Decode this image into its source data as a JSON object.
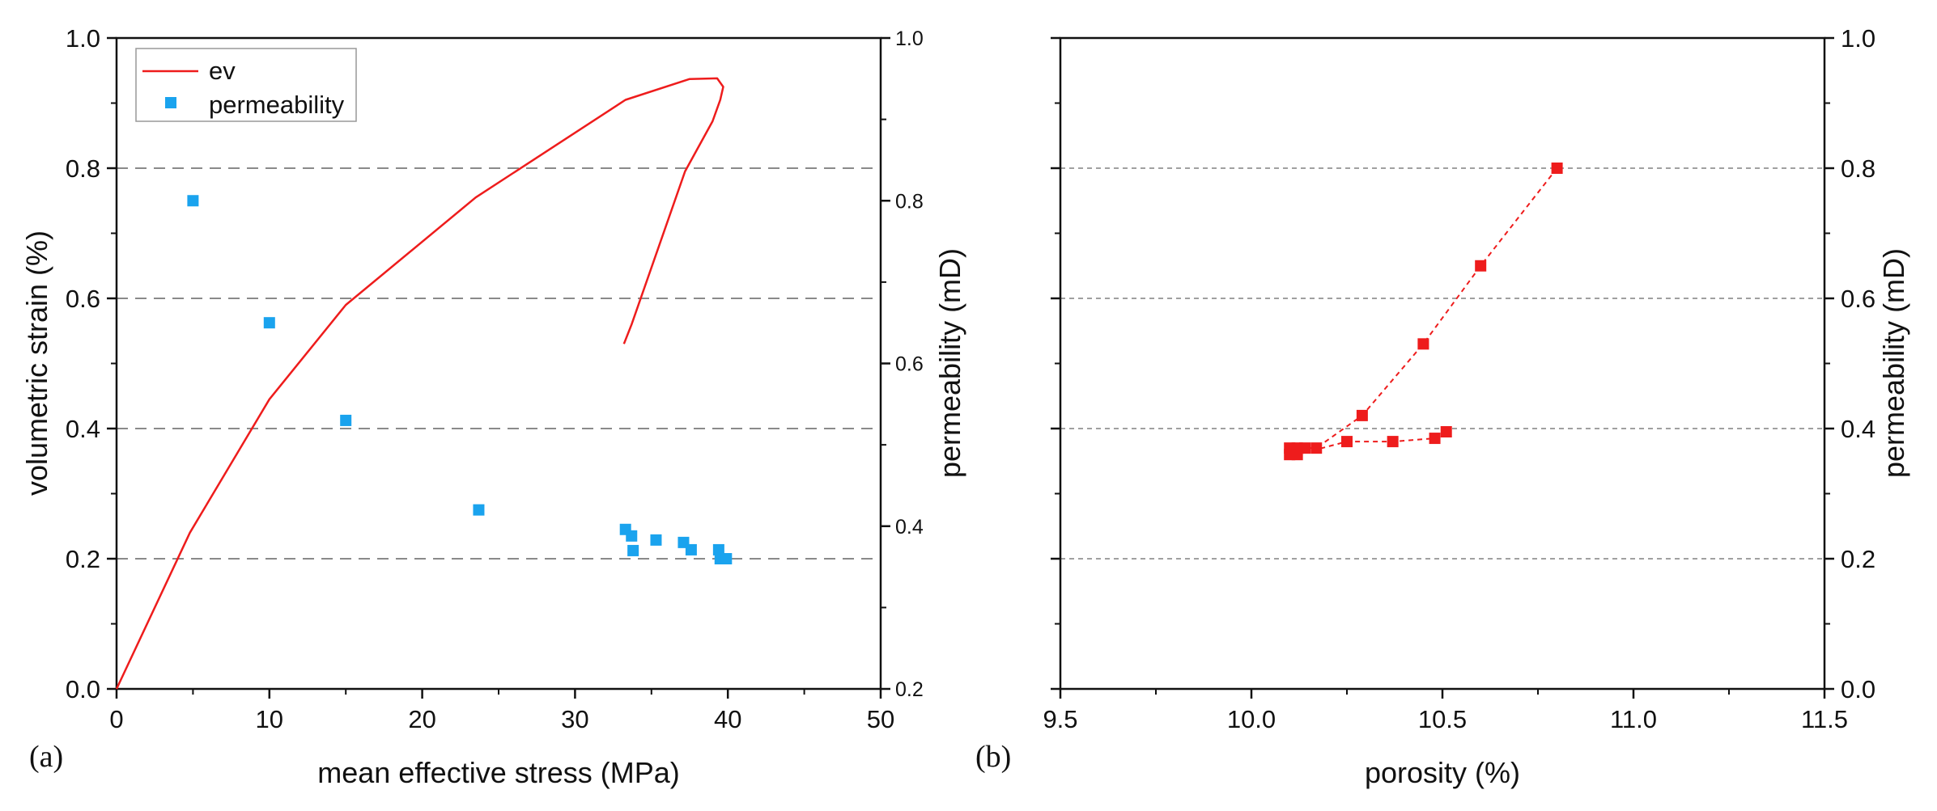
{
  "chart_data": [
    {
      "panel": "(a)",
      "type": "line+scatter",
      "xlabel": "mean effective stress (MPa)",
      "ylabel_left": "volumetric strain (%)",
      "ylabel_right": "permeability (mD)",
      "xlim": [
        0,
        50
      ],
      "ylim_left": [
        0.0,
        1.0
      ],
      "ylim_right": [
        0.2,
        1.0
      ],
      "xticks": [
        "0",
        "10",
        "20",
        "30",
        "40",
        "50"
      ],
      "yticks_left": [
        "0.0",
        "0.2",
        "0.4",
        "0.6",
        "0.8",
        "1.0"
      ],
      "yticks_right": [
        "0.2",
        "0.4",
        "0.6",
        "0.8",
        "1.0"
      ],
      "grid": "horizontal dashed at left-axis ticks 0.2, 0.4, 0.6, 0.8",
      "legend": {
        "position": "top-left",
        "entries": [
          "ev",
          "permeability"
        ]
      },
      "series": [
        {
          "name": "ev",
          "kind": "line",
          "axis": "left",
          "color": "#ee1c1c",
          "x": [
            0,
            4.8,
            10,
            15,
            23.5,
            33.3,
            37.5,
            39.3,
            39.7,
            39.5,
            39.0,
            37.2,
            33.7,
            33.2
          ],
          "y": [
            0.0,
            0.24,
            0.445,
            0.59,
            0.755,
            0.905,
            0.937,
            0.938,
            0.925,
            0.905,
            0.872,
            0.795,
            0.56,
            0.53
          ]
        },
        {
          "name": "permeability",
          "kind": "scatter",
          "axis": "right",
          "color": "#1aa3ee",
          "x": [
            5,
            10,
            15,
            23.7,
            33.3,
            33.7,
            33.8,
            35.3,
            37.1,
            37.6,
            39.4,
            39.5,
            39.9
          ],
          "y": [
            0.8,
            0.65,
            0.53,
            0.42,
            0.396,
            0.388,
            0.37,
            0.383,
            0.38,
            0.371,
            0.371,
            0.36,
            0.36
          ]
        }
      ]
    },
    {
      "panel": "(b)",
      "type": "scatter+dashed-line",
      "xlabel": "porosity (%)",
      "ylabel_right": "permeability (mD)",
      "xlim": [
        9.5,
        11.5
      ],
      "ylim_right": [
        0.0,
        1.0
      ],
      "xticks": [
        "9.5",
        "10.0",
        "10.5",
        "11.0",
        "11.5"
      ],
      "yticks_right": [
        "0.0",
        "0.2",
        "0.4",
        "0.6",
        "0.8",
        "1.0"
      ],
      "grid": "horizontal dashed at 0.2, 0.4, 0.6, 0.8",
      "series": [
        {
          "name": "permeability",
          "kind": "scatter-line",
          "color": "#ee1c1c",
          "x": [
            10.8,
            10.6,
            10.45,
            10.29,
            10.17,
            10.14,
            10.12,
            10.1,
            10.1,
            10.12,
            10.25,
            10.37,
            10.48,
            10.51
          ],
          "y": [
            0.8,
            0.65,
            0.53,
            0.42,
            0.37,
            0.37,
            0.37,
            0.37,
            0.36,
            0.36,
            0.38,
            0.38,
            0.385,
            0.395
          ]
        }
      ]
    }
  ]
}
